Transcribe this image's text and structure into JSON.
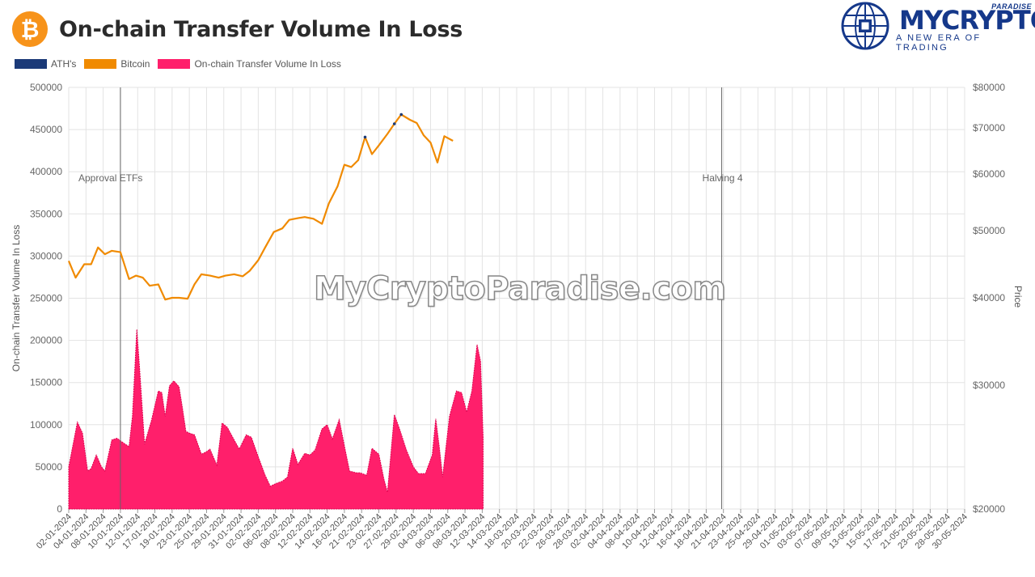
{
  "header": {
    "title": "On-chain Transfer Volume In Loss",
    "logo_icon": "bitcoin-icon",
    "logo_symbol": "₿"
  },
  "brand": {
    "name": "MYCRYPTO",
    "sup": "PARADISE",
    "tagline": "A NEW ERA OF TRADING",
    "icon": "globe-icon"
  },
  "watermark": "MyCryptoParadise.com",
  "colors": {
    "ath": "#1b3a78",
    "bitcoin": "#f08a00",
    "volume": "#ff1f6b",
    "grid": "#e3e3e3",
    "marker": "#666666"
  },
  "chart_data": {
    "type": "area",
    "title": "On-chain Transfer Volume In Loss",
    "legend": [
      "ATH's",
      "Bitcoin",
      "On-chain Transfer Volume In Loss"
    ],
    "legend_position": "top-left",
    "ylabel_left": "On-chain Transfer Volume In Loss",
    "ylabel_right": "Price",
    "ylim_left": [
      0,
      500000
    ],
    "yticks_left": [
      "500000",
      "450000",
      "400000",
      "350000",
      "300000",
      "250000",
      "200000",
      "150000",
      "100000",
      "50000",
      "0"
    ],
    "yticks_right": [
      "$80000",
      "$70000",
      "$60000",
      "$50000",
      "$40000",
      "$30000",
      "$20000"
    ],
    "x_labels": [
      "02-01-2024",
      "04-01-2024",
      "08-01-2024",
      "10-01-2024",
      "12-01-2024",
      "17-01-2024",
      "19-01-2024",
      "23-01-2024",
      "25-01-2024",
      "29-01-2024",
      "31-01-2024",
      "02-02-2024",
      "06-02-2024",
      "08-02-2024",
      "12-02-2024",
      "14-02-2024",
      "16-02-2024",
      "21-02-2024",
      "23-02-2024",
      "27-02-2024",
      "29-02-2024",
      "04-03-2024",
      "06-03-2024",
      "08-03-2024",
      "12-03-2024",
      "14-03-2024",
      "18-03-2024",
      "20-03-2024",
      "22-03-2024",
      "26-03-2024",
      "28-03-2024",
      "02-04-2024",
      "04-04-2024",
      "08-04-2024",
      "10-04-2024",
      "12-04-2024",
      "16-04-2024",
      "18-04-2024",
      "21-04-2024",
      "23-04-2024",
      "25-04-2024",
      "29-04-2024",
      "01-05-2024",
      "03-05-2024",
      "07-05-2024",
      "09-05-2024",
      "13-05-2024",
      "15-05-2024",
      "17-05-2024",
      "21-05-2024",
      "23-05-2024",
      "28-05-2024",
      "30-05-2024"
    ],
    "grid": true,
    "annotations": [
      {
        "text": "Approval ETFs",
        "x_index": 3.0
      },
      {
        "text": "Halving 4",
        "x_index": 37.9
      }
    ],
    "series": [
      {
        "name": "On-chain Transfer Volume In Loss",
        "axis": "left",
        "type": "area",
        "points": [
          [
            0,
            50000
          ],
          [
            0.5,
            103000
          ],
          [
            0.8,
            90000
          ],
          [
            1.1,
            45000
          ],
          [
            1.3,
            48000
          ],
          [
            1.6,
            64000
          ],
          [
            1.9,
            50000
          ],
          [
            2.1,
            45000
          ],
          [
            2.5,
            82000
          ],
          [
            2.8,
            84000
          ],
          [
            3.2,
            78000
          ],
          [
            3.5,
            74000
          ],
          [
            3.7,
            110000
          ],
          [
            3.95,
            213000
          ],
          [
            4.1,
            170000
          ],
          [
            4.4,
            77000
          ],
          [
            4.8,
            105000
          ],
          [
            5.2,
            140000
          ],
          [
            5.4,
            138000
          ],
          [
            5.6,
            110000
          ],
          [
            5.85,
            146000
          ],
          [
            6.1,
            152000
          ],
          [
            6.4,
            145000
          ],
          [
            6.6,
            120000
          ],
          [
            6.8,
            92000
          ],
          [
            7.0,
            90000
          ],
          [
            7.3,
            88000
          ],
          [
            7.7,
            65000
          ],
          [
            8.0,
            68000
          ],
          [
            8.2,
            71000
          ],
          [
            8.6,
            52000
          ],
          [
            8.9,
            102000
          ],
          [
            9.2,
            97000
          ],
          [
            9.6,
            82000
          ],
          [
            9.9,
            71000
          ],
          [
            10.3,
            88000
          ],
          [
            10.6,
            85000
          ],
          [
            11.0,
            62000
          ],
          [
            11.4,
            40000
          ],
          [
            11.7,
            27000
          ],
          [
            12.0,
            30000
          ],
          [
            12.4,
            33000
          ],
          [
            12.7,
            38000
          ],
          [
            13.0,
            72000
          ],
          [
            13.3,
            53000
          ],
          [
            13.7,
            66000
          ],
          [
            14.0,
            64000
          ],
          [
            14.3,
            70000
          ],
          [
            14.7,
            95000
          ],
          [
            15.0,
            100000
          ],
          [
            15.3,
            83000
          ],
          [
            15.7,
            106000
          ],
          [
            16.0,
            75000
          ],
          [
            16.3,
            45000
          ],
          [
            16.7,
            43000
          ],
          [
            16.9,
            43000
          ],
          [
            17.3,
            40000
          ],
          [
            17.6,
            72000
          ],
          [
            18.0,
            65000
          ],
          [
            18.3,
            35000
          ],
          [
            18.5,
            20000
          ],
          [
            18.9,
            112000
          ],
          [
            19.2,
            95000
          ],
          [
            19.6,
            70000
          ],
          [
            20.0,
            50000
          ],
          [
            20.3,
            42000
          ],
          [
            20.7,
            42000
          ],
          [
            21.1,
            64000
          ],
          [
            21.3,
            107000
          ],
          [
            21.5,
            75000
          ],
          [
            21.7,
            38000
          ],
          [
            22.1,
            110000
          ],
          [
            22.5,
            140000
          ],
          [
            22.8,
            138000
          ],
          [
            23.1,
            115000
          ],
          [
            23.4,
            140000
          ],
          [
            23.7,
            195000
          ],
          [
            23.9,
            175000
          ],
          [
            24.05,
            85000
          ],
          [
            24.05,
            0
          ]
        ]
      },
      {
        "name": "Bitcoin",
        "axis": "right",
        "type": "line",
        "points": [
          [
            0,
            45500
          ],
          [
            0.4,
            43000
          ],
          [
            0.9,
            45000
          ],
          [
            1.3,
            45000
          ],
          [
            1.7,
            47500
          ],
          [
            2.1,
            46500
          ],
          [
            2.5,
            47000
          ],
          [
            3.0,
            46800
          ],
          [
            3.5,
            42800
          ],
          [
            3.9,
            43300
          ],
          [
            4.3,
            43000
          ],
          [
            4.7,
            41800
          ],
          [
            5.2,
            42000
          ],
          [
            5.6,
            39800
          ],
          [
            6.0,
            40000
          ],
          [
            6.4,
            40000
          ],
          [
            6.9,
            39900
          ],
          [
            7.3,
            42000
          ],
          [
            7.7,
            43500
          ],
          [
            8.2,
            43300
          ],
          [
            8.7,
            43000
          ],
          [
            9.1,
            43300
          ],
          [
            9.6,
            43500
          ],
          [
            10.1,
            43200
          ],
          [
            10.5,
            44000
          ],
          [
            11.0,
            45600
          ],
          [
            11.4,
            47500
          ],
          [
            11.9,
            49800
          ],
          [
            12.4,
            50400
          ],
          [
            12.8,
            51900
          ],
          [
            13.3,
            52200
          ],
          [
            13.7,
            52400
          ],
          [
            14.2,
            52100
          ],
          [
            14.7,
            51200
          ],
          [
            15.1,
            54800
          ],
          [
            15.6,
            57800
          ],
          [
            16.0,
            62000
          ],
          [
            16.4,
            61500
          ],
          [
            16.8,
            63000
          ],
          [
            17.2,
            68000
          ],
          [
            17.6,
            64300
          ],
          [
            18.0,
            66200
          ],
          [
            18.5,
            68700
          ],
          [
            18.9,
            71000
          ],
          [
            19.3,
            73300
          ],
          [
            19.8,
            72000
          ],
          [
            20.2,
            71200
          ],
          [
            20.6,
            68400
          ],
          [
            21.0,
            66800
          ],
          [
            21.4,
            62500
          ],
          [
            21.8,
            68200
          ],
          [
            22.3,
            67200
          ]
        ]
      },
      {
        "name": "ATH's",
        "axis": "right",
        "type": "marker",
        "points": [
          [
            17.2,
            68000
          ],
          [
            18.9,
            71000
          ],
          [
            19.3,
            73300
          ]
        ]
      }
    ]
  }
}
